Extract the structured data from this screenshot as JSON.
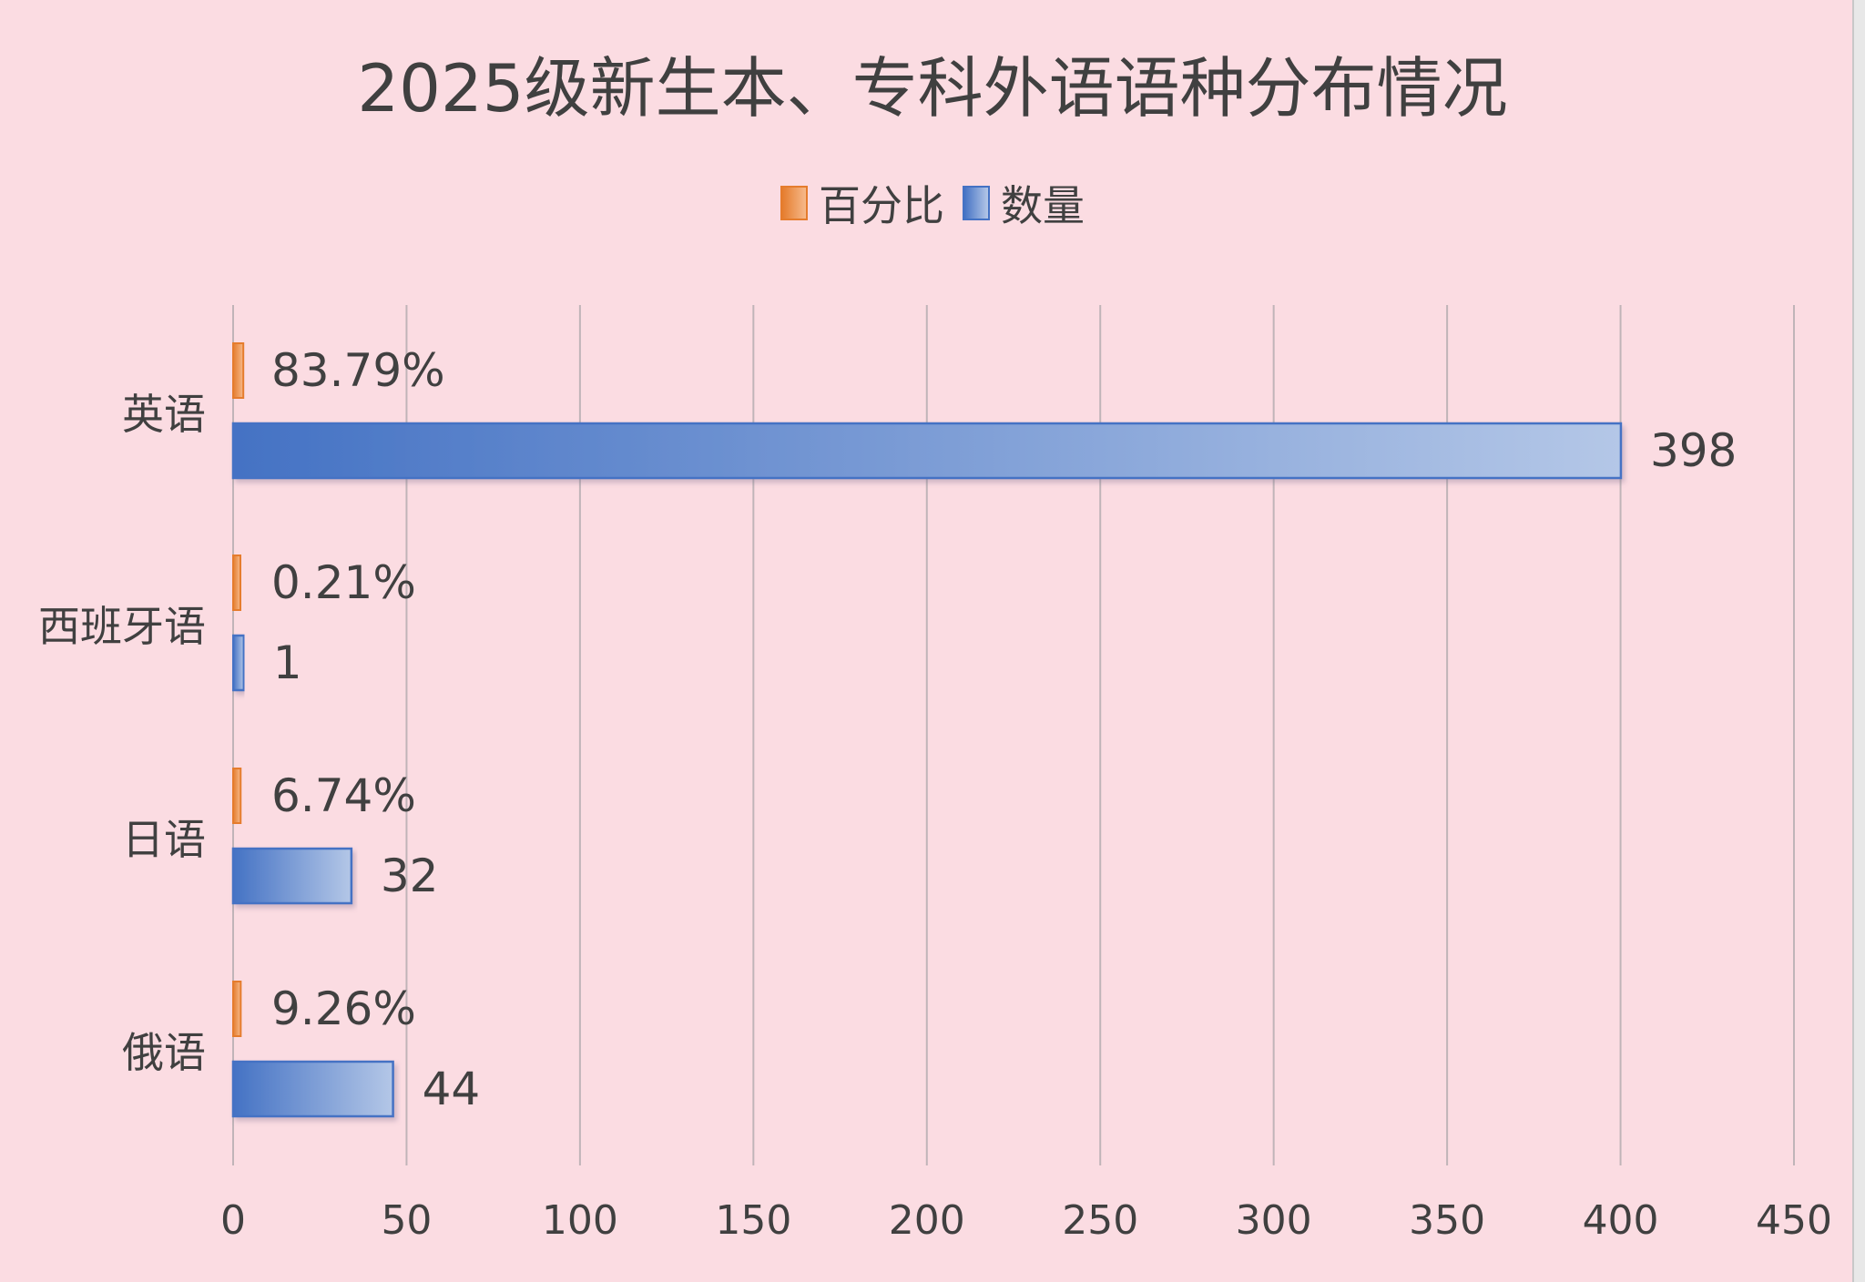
{
  "chart_data": {
    "type": "bar",
    "orientation": "horizontal",
    "title": "2025级新生本、专科外语语种分布情况",
    "categories": [
      "英语",
      "西班牙语",
      "日语",
      "俄语"
    ],
    "series": [
      {
        "name": "百分比",
        "values": [
          0.8379,
          0.0021,
          0.0674,
          0.0926
        ],
        "labels": [
          "83.79%",
          "0.21%",
          "6.74%",
          "9.26%"
        ],
        "color": "#e57c2d"
      },
      {
        "name": "数量",
        "values": [
          398,
          1,
          32,
          44
        ],
        "labels": [
          "398",
          "1",
          "32",
          "44"
        ],
        "color": "#4472c4"
      }
    ],
    "xlim": [
      0,
      450
    ],
    "xticks": [
      "0",
      "50",
      "100",
      "150",
      "200",
      "250",
      "300",
      "350",
      "400",
      "450"
    ],
    "grid": true,
    "legend_position": "top"
  },
  "colors": {
    "background": "#fbdce2",
    "gridline": "#c0b4b8",
    "percent_series": "#e57c2d",
    "count_series": "#4472c4"
  }
}
